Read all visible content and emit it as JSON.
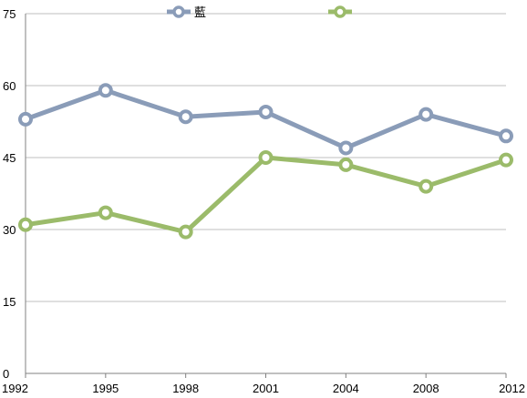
{
  "chart_data": {
    "type": "line",
    "title": "",
    "xlabel": "",
    "ylabel": "",
    "x": [
      "1992",
      "1995",
      "1998",
      "2001",
      "2004",
      "2008",
      "2012"
    ],
    "ylim": [
      0,
      75
    ],
    "yticks": [
      0,
      15,
      30,
      45,
      60,
      75
    ],
    "grid": true,
    "legend": "top-center",
    "series": [
      {
        "name": "藍",
        "color": "#8A9CB8",
        "values": [
          53.0,
          59.0,
          53.5,
          54.5,
          47.0,
          54.0,
          49.5
        ]
      },
      {
        "name": "",
        "color": "#9BBB6A",
        "values": [
          31.0,
          33.5,
          29.5,
          45.0,
          43.5,
          39.0,
          44.5
        ]
      }
    ]
  }
}
